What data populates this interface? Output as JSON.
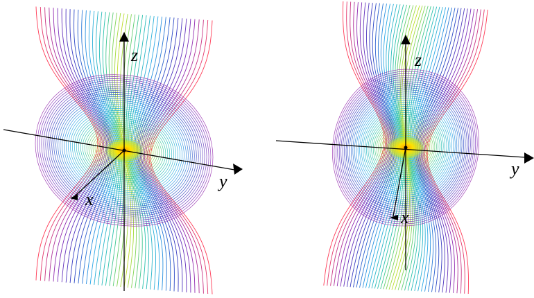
{
  "figure": {
    "panels": [
      {
        "id": "left",
        "axis_labels": {
          "x": "x",
          "y": "y",
          "z": "z"
        }
      },
      {
        "id": "right",
        "axis_labels": {
          "x": "x",
          "y": "y",
          "z": "z"
        }
      }
    ],
    "colors": {
      "center": "#ffd400",
      "inner": "#b6dd2a",
      "mid": "#27c3a8",
      "outer": "#2aa8e8",
      "far": "#2b3fc2",
      "edge_violet": "#8a2bb8",
      "edge_red": "#ff3a55",
      "axis": "#000000"
    }
  }
}
